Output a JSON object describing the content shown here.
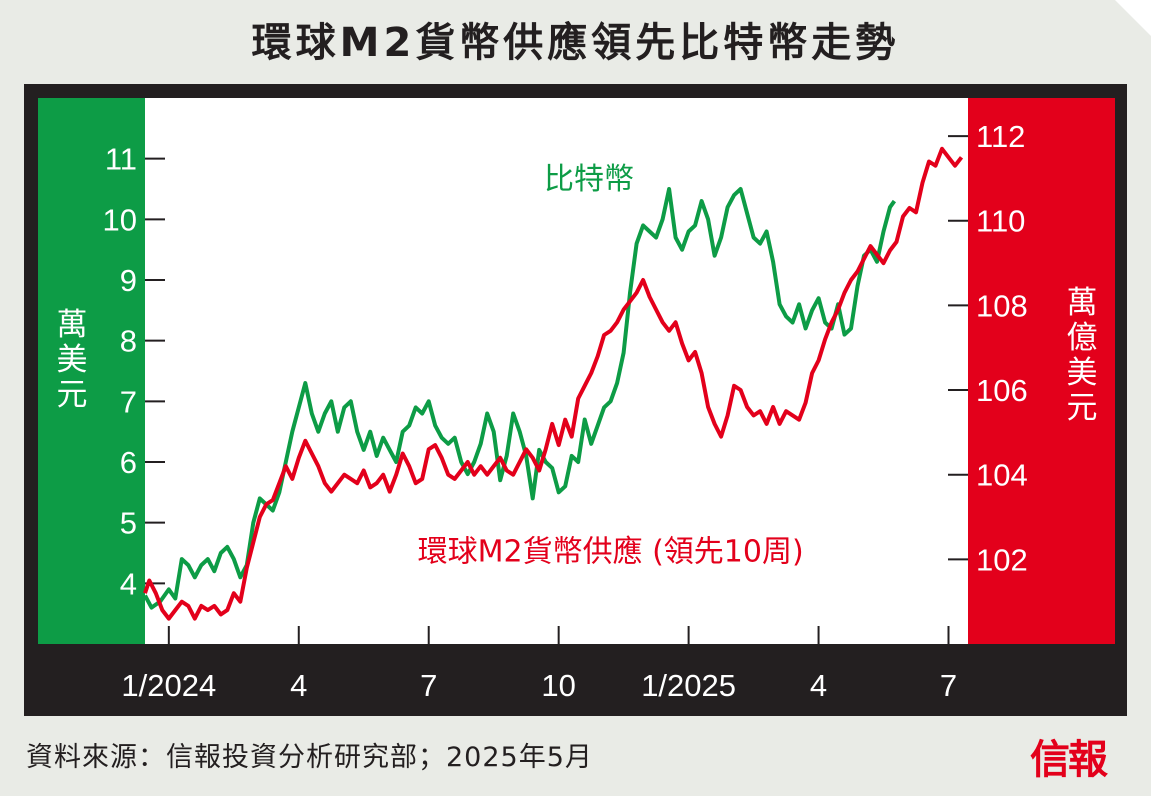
{
  "title": "環球M2貨幣供應領先比特幣走勢",
  "source": "資料來源：信報投資分析研究部；2025年5月",
  "logo_text": "信報",
  "chart_data": {
    "type": "line",
    "title": "環球M2貨幣供應領先比特幣走勢",
    "left_axis": {
      "unit": "萬美元",
      "ylim": [
        3.0,
        12.0
      ],
      "ticks": [
        4,
        5,
        6,
        7,
        8,
        9,
        10,
        11
      ],
      "color": "#0d9c46"
    },
    "right_axis": {
      "unit": "萬億美元",
      "ylim": [
        100.0,
        112.9
      ],
      "ticks": [
        102,
        104,
        106,
        108,
        110,
        112
      ],
      "color": "#e3001b"
    },
    "x_ticks": [
      "1/2024",
      "4",
      "7",
      "10",
      "1/2025",
      "4",
      "7"
    ],
    "xlim": [
      -0.55,
      18.45
    ],
    "grid": false,
    "legend": "inline labels",
    "series": [
      {
        "name": "比特幣",
        "axis": "left",
        "color": "#0d9c46",
        "x": [
          -0.55,
          -0.4,
          -0.2,
          0.0,
          0.15,
          0.3,
          0.45,
          0.6,
          0.75,
          0.9,
          1.05,
          1.2,
          1.35,
          1.5,
          1.65,
          1.8,
          1.95,
          2.1,
          2.25,
          2.4,
          2.55,
          2.7,
          2.85,
          3.0,
          3.15,
          3.3,
          3.45,
          3.6,
          3.75,
          3.9,
          4.05,
          4.2,
          4.35,
          4.5,
          4.65,
          4.8,
          4.95,
          5.1,
          5.25,
          5.4,
          5.55,
          5.7,
          5.85,
          6.0,
          6.15,
          6.3,
          6.45,
          6.6,
          6.75,
          6.9,
          7.05,
          7.2,
          7.35,
          7.5,
          7.65,
          7.8,
          7.95,
          8.1,
          8.25,
          8.4,
          8.55,
          8.7,
          8.85,
          9.0,
          9.15,
          9.3,
          9.45,
          9.6,
          9.75,
          9.9,
          10.05,
          10.2,
          10.35,
          10.5,
          10.65,
          10.8,
          10.95,
          11.1,
          11.25,
          11.4,
          11.55,
          11.7,
          11.85,
          12.0,
          12.15,
          12.3,
          12.45,
          12.6,
          12.75,
          12.9,
          13.05,
          13.2,
          13.35,
          13.5,
          13.65,
          13.8,
          13.95,
          14.1,
          14.25,
          14.4,
          14.55,
          14.7,
          14.85,
          15.0,
          15.15,
          15.3,
          15.45,
          15.6,
          15.75,
          15.9,
          16.05,
          16.2,
          16.35,
          16.5,
          16.65,
          16.75
        ],
        "values": [
          3.8,
          3.6,
          3.7,
          3.9,
          3.75,
          4.4,
          4.3,
          4.1,
          4.3,
          4.4,
          4.2,
          4.5,
          4.6,
          4.4,
          4.1,
          4.3,
          5.0,
          5.4,
          5.3,
          5.2,
          5.5,
          6.0,
          6.5,
          6.9,
          7.3,
          6.8,
          6.5,
          6.8,
          7.0,
          6.5,
          6.9,
          7.0,
          6.5,
          6.2,
          6.5,
          6.1,
          6.4,
          6.2,
          6.0,
          6.5,
          6.6,
          6.9,
          6.8,
          7.0,
          6.6,
          6.4,
          6.3,
          6.4,
          6.0,
          5.8,
          6.0,
          6.3,
          6.8,
          6.5,
          5.7,
          6.1,
          6.8,
          6.5,
          6.1,
          5.4,
          6.2,
          6.0,
          5.9,
          5.5,
          5.6,
          6.1,
          6.0,
          6.7,
          6.3,
          6.6,
          6.9,
          7.0,
          7.3,
          7.8,
          8.8,
          9.6,
          9.9,
          9.8,
          9.7,
          10.0,
          10.5,
          9.7,
          9.5,
          9.8,
          9.9,
          10.3,
          10.0,
          9.4,
          9.7,
          10.2,
          10.4,
          10.5,
          10.1,
          9.7,
          9.6,
          9.8,
          9.3,
          8.6,
          8.4,
          8.3,
          8.6,
          8.2,
          8.5,
          8.7,
          8.3,
          8.2,
          8.6,
          8.1,
          8.2,
          8.9,
          9.4,
          9.5,
          9.3,
          9.8,
          10.2,
          10.3
        ]
      },
      {
        "name": "環球M2貨幣供應(領先10周)",
        "axis": "right",
        "color": "#e3001b",
        "x": [
          -0.55,
          -0.45,
          -0.3,
          -0.15,
          0.0,
          0.15,
          0.3,
          0.45,
          0.6,
          0.75,
          0.9,
          1.05,
          1.2,
          1.35,
          1.5,
          1.65,
          1.8,
          1.95,
          2.1,
          2.25,
          2.4,
          2.55,
          2.7,
          2.85,
          3.0,
          3.15,
          3.3,
          3.45,
          3.6,
          3.75,
          3.9,
          4.05,
          4.2,
          4.35,
          4.5,
          4.65,
          4.8,
          4.95,
          5.1,
          5.25,
          5.4,
          5.55,
          5.7,
          5.85,
          6.0,
          6.15,
          6.3,
          6.45,
          6.6,
          6.75,
          6.9,
          7.05,
          7.2,
          7.35,
          7.5,
          7.65,
          7.8,
          7.95,
          8.1,
          8.25,
          8.4,
          8.55,
          8.7,
          8.85,
          9.0,
          9.15,
          9.3,
          9.45,
          9.6,
          9.75,
          9.9,
          10.05,
          10.2,
          10.35,
          10.5,
          10.65,
          10.8,
          10.95,
          11.1,
          11.25,
          11.4,
          11.55,
          11.7,
          11.85,
          12.0,
          12.15,
          12.3,
          12.45,
          12.6,
          12.75,
          12.9,
          13.05,
          13.2,
          13.35,
          13.5,
          13.65,
          13.8,
          13.95,
          14.1,
          14.25,
          14.4,
          14.55,
          14.7,
          14.85,
          15.0,
          15.15,
          15.3,
          15.45,
          15.6,
          15.75,
          15.9,
          16.05,
          16.2,
          16.35,
          16.5,
          16.65,
          16.8,
          16.95,
          17.1,
          17.25,
          17.4,
          17.55,
          17.7,
          17.85,
          18.0,
          18.15,
          18.3
        ],
        "values": [
          101.2,
          101.5,
          101.2,
          100.8,
          100.6,
          100.8,
          101.0,
          100.9,
          100.6,
          100.9,
          100.8,
          100.9,
          100.7,
          100.8,
          101.2,
          101.0,
          101.8,
          102.4,
          103.0,
          103.3,
          103.4,
          103.8,
          104.2,
          103.9,
          104.4,
          104.8,
          104.5,
          104.2,
          103.8,
          103.6,
          103.8,
          104.0,
          103.9,
          103.8,
          104.1,
          103.7,
          103.8,
          104.0,
          103.6,
          104.0,
          104.5,
          104.2,
          103.8,
          103.9,
          104.6,
          104.7,
          104.4,
          104.0,
          103.9,
          104.1,
          104.3,
          104.0,
          104.2,
          104.0,
          104.2,
          104.4,
          104.1,
          104.0,
          104.3,
          104.6,
          104.4,
          104.1,
          104.6,
          105.2,
          104.7,
          105.3,
          104.9,
          105.8,
          106.1,
          106.4,
          106.8,
          107.3,
          107.4,
          107.6,
          107.9,
          108.1,
          108.3,
          108.6,
          108.2,
          107.9,
          107.6,
          107.4,
          107.6,
          107.1,
          106.7,
          106.9,
          106.4,
          105.6,
          105.2,
          104.9,
          105.4,
          106.1,
          106.0,
          105.6,
          105.4,
          105.5,
          105.2,
          105.6,
          105.2,
          105.5,
          105.4,
          105.3,
          105.7,
          106.4,
          106.7,
          107.2,
          107.6,
          107.9,
          108.3,
          108.6,
          108.8,
          109.1,
          109.4,
          109.2,
          109.0,
          109.3,
          109.5,
          110.1,
          110.3,
          110.2,
          110.9,
          111.4,
          111.3,
          111.7,
          111.5,
          111.3,
          111.5
        ]
      }
    ],
    "annotations": [
      {
        "text": "比特幣",
        "series": 0,
        "x": 9.7,
        "y": 10.5,
        "color": "#0d9c46"
      },
      {
        "text": "環球M2貨幣供應 (領先10周)",
        "series": 1,
        "x": 10.2,
        "y": 101.95,
        "color": "#e3001b"
      }
    ]
  }
}
